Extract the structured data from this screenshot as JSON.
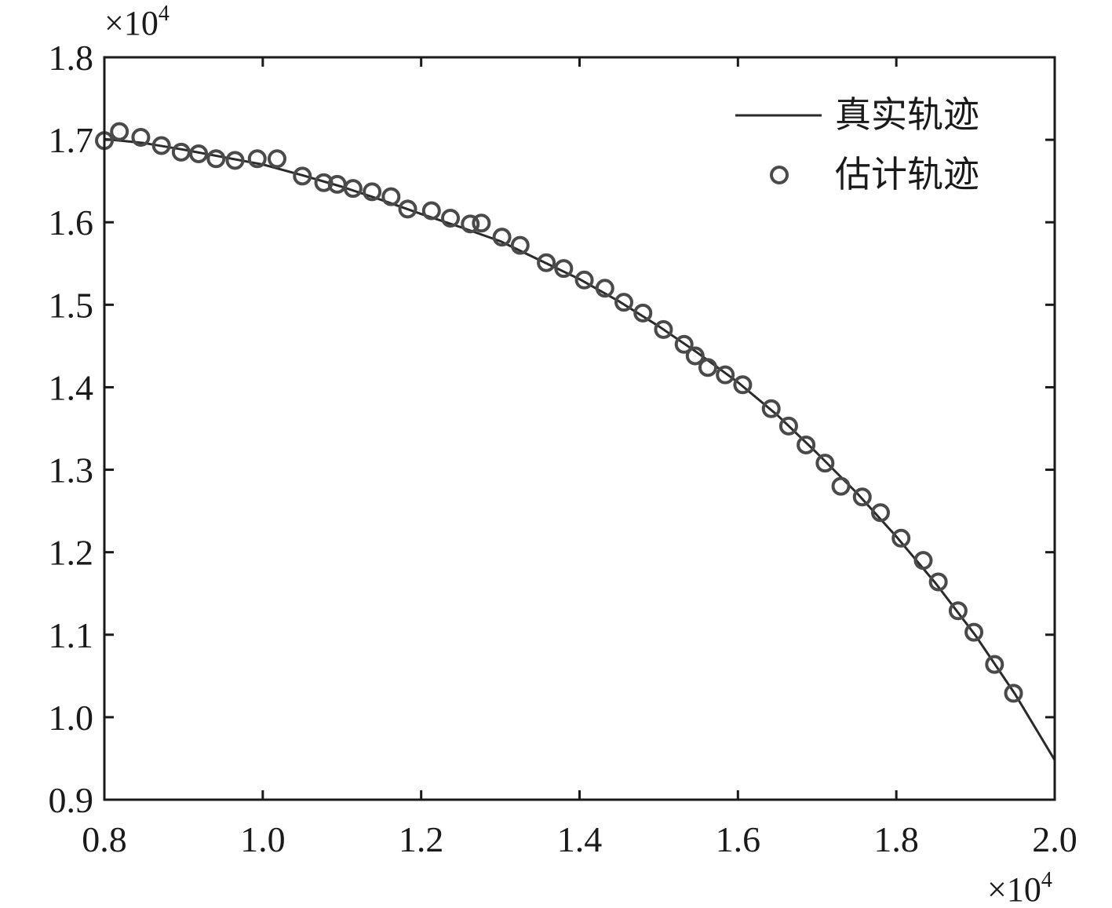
{
  "chart_data": {
    "type": "line",
    "title": "",
    "xlabel": "",
    "ylabel": "",
    "x_multiplier": "×10",
    "y_multiplier": "×10",
    "multiplier_exponent": "4",
    "xlim": [
      0.8,
      2.0
    ],
    "ylim": [
      0.9,
      1.8
    ],
    "x_ticks": [
      "0.8",
      "1.0",
      "1.2",
      "1.4",
      "1.6",
      "1.8",
      "2.0"
    ],
    "y_ticks": [
      "0.9",
      "1.0",
      "1.1",
      "1.2",
      "1.3",
      "1.4",
      "1.5",
      "1.6",
      "1.7",
      "1.8"
    ],
    "grid": false,
    "legend_position": "top-right",
    "colors": {
      "line": "#2a2a2a",
      "marker": "#4a4a4a"
    },
    "series": [
      {
        "name": "真实轨迹",
        "kind": "line",
        "x": [
          0.8,
          0.85,
          0.9,
          0.95,
          1.0,
          1.05,
          1.1,
          1.15,
          1.2,
          1.25,
          1.3,
          1.35,
          1.4,
          1.45,
          1.5,
          1.55,
          1.6,
          1.65,
          1.7,
          1.75,
          1.8,
          1.85,
          1.9,
          1.95,
          2.0
        ],
        "y": [
          1.701,
          1.696,
          1.688,
          1.679,
          1.67,
          1.657,
          1.643,
          1.627,
          1.61,
          1.594,
          1.577,
          1.554,
          1.531,
          1.504,
          1.474,
          1.441,
          1.406,
          1.366,
          1.32,
          1.272,
          1.219,
          1.162,
          1.099,
          1.028,
          0.948
        ]
      },
      {
        "name": "估计轨迹",
        "kind": "scatter",
        "x": [
          0.8,
          0.819,
          0.846,
          0.872,
          0.897,
          0.919,
          0.941,
          0.965,
          0.993,
          1.018,
          1.05,
          1.077,
          1.094,
          1.114,
          1.138,
          1.162,
          1.183,
          1.213,
          1.237,
          1.262,
          1.276,
          1.302,
          1.325,
          1.358,
          1.38,
          1.406,
          1.432,
          1.456,
          1.48,
          1.506,
          1.532,
          1.546,
          1.562,
          1.584,
          1.606,
          1.642,
          1.664,
          1.686,
          1.71,
          1.73,
          1.757,
          1.78,
          1.806,
          1.834,
          1.853,
          1.878,
          1.898,
          1.924,
          1.948
        ],
        "y": [
          1.699,
          1.71,
          1.703,
          1.693,
          1.685,
          1.683,
          1.677,
          1.675,
          1.677,
          1.677,
          1.656,
          1.648,
          1.646,
          1.641,
          1.637,
          1.631,
          1.616,
          1.614,
          1.605,
          1.598,
          1.599,
          1.582,
          1.572,
          1.551,
          1.544,
          1.53,
          1.52,
          1.503,
          1.49,
          1.47,
          1.452,
          1.438,
          1.424,
          1.415,
          1.403,
          1.374,
          1.353,
          1.33,
          1.308,
          1.28,
          1.267,
          1.248,
          1.217,
          1.19,
          1.164,
          1.129,
          1.103,
          1.064,
          1.029
        ]
      }
    ]
  }
}
